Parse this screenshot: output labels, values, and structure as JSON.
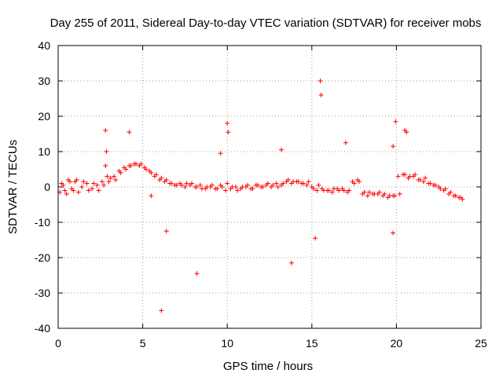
{
  "chart_data": {
    "type": "scatter",
    "title": "Day 255 of 2011, Sidereal Day-to-day VTEC variation (SDTVAR) for receiver mobs",
    "xlabel": "GPS time / hours",
    "ylabel": "SDTVAR / TECUs",
    "xlim": [
      0,
      25
    ],
    "ylim": [
      -40,
      40
    ],
    "xticks": [
      "0",
      "5",
      "10",
      "15",
      "20",
      "25"
    ],
    "yticks": [
      "40",
      "30",
      "20",
      "10",
      "0",
      "-10",
      "-20",
      "-30",
      "-40"
    ],
    "grid": true,
    "marker": "+",
    "color": "#ff0000",
    "series": [
      {
        "name": "SDTVAR",
        "x": [
          0.1,
          0.3,
          0.5,
          0.7,
          0.9,
          1.1,
          1.4,
          1.7,
          2.0,
          2.3,
          2.6,
          2.8,
          2.9,
          3.0,
          3.3,
          3.6,
          3.9,
          4.2,
          4.5,
          4.8,
          5.1,
          5.4,
          5.7,
          6.0,
          6.3,
          6.6,
          6.9,
          7.2,
          7.5,
          7.8,
          8.1,
          8.4,
          8.7,
          9.0,
          9.3,
          9.6,
          9.9,
          10.2,
          10.5,
          10.8,
          11.1,
          11.4,
          11.7,
          12.0,
          12.3,
          12.6,
          12.9,
          13.2,
          13.5,
          13.8,
          14.1,
          14.4,
          14.7,
          15.0,
          15.3,
          15.6,
          15.9,
          16.2,
          16.5,
          16.8,
          17.1,
          17.4,
          17.7,
          18.0,
          18.3,
          18.6,
          18.9,
          19.2,
          19.5,
          19.8,
          20.1,
          20.4,
          20.7,
          21.0,
          21.3,
          21.6,
          21.9,
          22.2,
          22.5,
          22.8,
          23.1,
          23.4,
          23.7,
          23.9,
          0.2,
          0.4,
          0.6,
          0.8,
          1.0,
          1.2,
          1.5,
          1.8,
          2.1,
          2.4,
          2.7,
          2.85,
          3.1,
          3.4,
          3.7,
          4.0,
          4.3,
          4.6,
          4.9,
          5.2,
          5.5,
          5.8,
          6.1,
          6.4,
          6.7,
          7.0,
          7.3,
          7.6,
          7.9,
          8.2,
          8.5,
          8.8,
          9.1,
          9.4,
          9.7,
          10.0,
          10.3,
          10.6,
          10.9,
          11.2,
          11.5,
          11.8,
          12.1,
          12.4,
          12.7,
          13.0,
          13.3,
          13.6,
          13.9,
          14.2,
          14.5,
          14.8,
          15.1,
          15.4,
          15.7,
          16.0,
          16.3,
          16.6,
          16.9,
          17.2,
          17.5,
          17.8,
          18.1,
          18.4,
          18.7,
          19.0,
          19.3,
          19.6,
          19.9,
          20.2,
          20.5,
          20.8,
          21.1,
          21.4,
          21.7,
          22.0,
          22.3,
          22.6,
          22.9,
          23.2,
          23.5,
          23.8,
          15.5,
          15.55,
          19.95,
          20.5,
          20.6,
          19.8,
          2.8,
          4.2,
          10.0,
          10.05,
          17.0,
          13.2,
          9.6,
          5.5,
          6.1,
          8.2,
          13.8,
          6.4,
          19.8,
          15.2
        ],
        "y": [
          -1.5,
          0.5,
          -2.0,
          1.5,
          -1.0,
          2.0,
          0.0,
          1.0,
          -0.5,
          0.5,
          1.5,
          6.0,
          3.0,
          1.5,
          3.0,
          4.5,
          5.5,
          6.0,
          6.5,
          6.0,
          5.5,
          4.5,
          3.0,
          2.0,
          1.5,
          1.0,
          0.5,
          1.0,
          0.0,
          0.5,
          0.0,
          0.5,
          -0.5,
          0.0,
          -0.5,
          0.5,
          -1.0,
          -0.5,
          0.0,
          -0.5,
          0.0,
          -0.5,
          0.5,
          0.0,
          0.5,
          0.0,
          1.0,
          0.5,
          1.5,
          1.0,
          1.5,
          1.0,
          0.5,
          0.0,
          -1.0,
          -0.5,
          -1.0,
          -1.5,
          -0.5,
          -0.5,
          -1.5,
          1.5,
          2.0,
          -2.0,
          -2.5,
          -2.0,
          -2.0,
          -2.5,
          -3.0,
          -2.5,
          3.0,
          3.5,
          2.5,
          3.0,
          2.0,
          1.5,
          1.0,
          0.5,
          0.0,
          -1.0,
          -2.0,
          -2.5,
          -3.0,
          -3.5,
          1.0,
          -1.0,
          2.0,
          -0.5,
          1.5,
          -1.5,
          1.5,
          -1.0,
          1.0,
          -1.0,
          0.5,
          10.0,
          2.5,
          2.0,
          4.0,
          5.0,
          6.0,
          6.5,
          6.5,
          5.0,
          4.0,
          3.5,
          2.5,
          2.0,
          1.0,
          0.5,
          0.5,
          1.0,
          1.0,
          0.0,
          -0.5,
          0.0,
          0.5,
          -0.5,
          0.0,
          1.0,
          0.0,
          -1.0,
          0.0,
          0.5,
          -0.5,
          0.5,
          0.0,
          1.0,
          0.5,
          0.0,
          1.0,
          2.0,
          1.5,
          1.5,
          1.0,
          1.5,
          -0.5,
          0.5,
          -1.0,
          -1.0,
          -0.5,
          -1.0,
          -1.0,
          -1.0,
          1.0,
          1.5,
          -1.5,
          -1.5,
          -2.0,
          -1.5,
          -2.0,
          -2.5,
          -2.5,
          -2.0,
          3.5,
          3.0,
          3.5,
          2.0,
          2.5,
          1.0,
          0.5,
          -0.5,
          -0.5,
          -1.5,
          -2.5,
          -3.0,
          30.0,
          26.0,
          18.5,
          16.0,
          15.5,
          11.5,
          16.0,
          15.5,
          18.0,
          15.5,
          12.5,
          10.5,
          9.5,
          -2.5,
          -35.0,
          -24.5,
          -21.5,
          -12.5,
          -13.0,
          -14.5
        ]
      }
    ]
  }
}
